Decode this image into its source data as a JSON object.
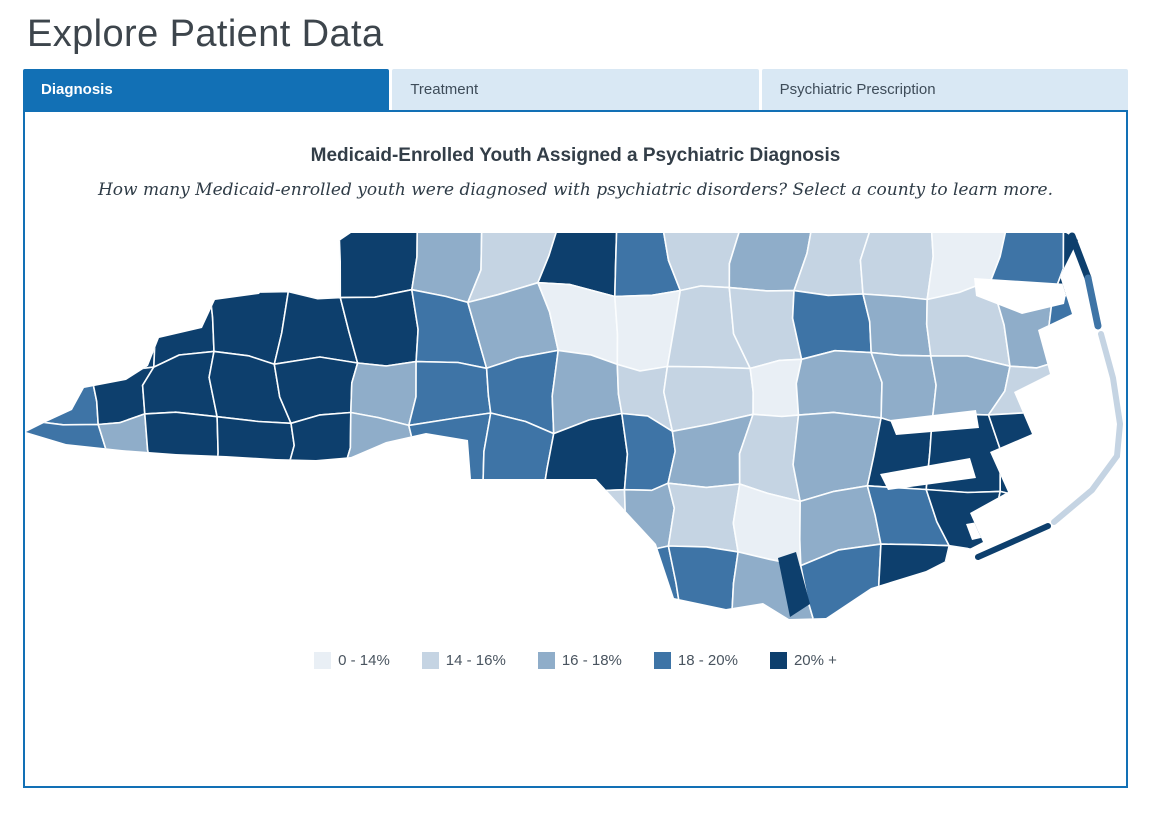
{
  "page": {
    "title": "Explore Patient Data"
  },
  "tabs": [
    {
      "label": "Diagnosis",
      "active": true
    },
    {
      "label": "Treatment",
      "active": false
    },
    {
      "label": "Psychiatric Prescription",
      "active": false
    }
  ],
  "panel": {
    "map_title": "Medicaid-Enrolled Youth Assigned a Psychiatric Diagnosis",
    "map_subtitle": "How many Medicaid-enrolled youth were diagnosed with psychiatric disorders? Select a county to learn more."
  },
  "legend": {
    "items": [
      {
        "label": "0 - 14%",
        "color": "#e9eff5"
      },
      {
        "label": "14 - 16%",
        "color": "#c5d4e3"
      },
      {
        "label": "16 - 18%",
        "color": "#8fadc9"
      },
      {
        "label": "18 - 20%",
        "color": "#3e74a6"
      },
      {
        "label": "20% +",
        "color": "#0d3f6d"
      }
    ]
  },
  "theme": {
    "accent_blue": "#1270b5",
    "tab_inactive_bg": "#d9e8f4",
    "tab_inactive_text": "#3e4c59",
    "county_border": "#fbfdfe"
  },
  "chart_data": {
    "type": "heatmap",
    "subtype": "choropleth",
    "region": "North Carolina counties",
    "title": "Medicaid-Enrolled Youth Assigned a Psychiatric Diagnosis",
    "legend_position": "bottom",
    "classes": [
      "0 - 14%",
      "14 - 16%",
      "16 - 18%",
      "18 - 20%",
      "20% +"
    ],
    "class_colors": [
      "#e9eff5",
      "#c5d4e3",
      "#8fadc9",
      "#3e74a6",
      "#0d3f6d"
    ],
    "grid_classes": [
      [
        0,
        0,
        0,
        0,
        0,
        5,
        3,
        2,
        5,
        4,
        2,
        3,
        2,
        2,
        1,
        4,
        5
      ],
      [
        0,
        5,
        5,
        5,
        5,
        5,
        4,
        3,
        1,
        1,
        2,
        2,
        4,
        3,
        2,
        3,
        4
      ],
      [
        4,
        5,
        5,
        5,
        5,
        3,
        4,
        4,
        3,
        2,
        2,
        1,
        3,
        3,
        3,
        2,
        1
      ],
      [
        4,
        3,
        5,
        5,
        5,
        3,
        4,
        4,
        5,
        4,
        3,
        2,
        3,
        5,
        5,
        5,
        1
      ],
      [
        1,
        1,
        1,
        1,
        1,
        2,
        1,
        2,
        2,
        3,
        2,
        1,
        3,
        4,
        5,
        5,
        1
      ],
      [
        0,
        0,
        0,
        0,
        0,
        0,
        0,
        0,
        2,
        4,
        4,
        3,
        4,
        5,
        0,
        0,
        0
      ]
    ]
  }
}
